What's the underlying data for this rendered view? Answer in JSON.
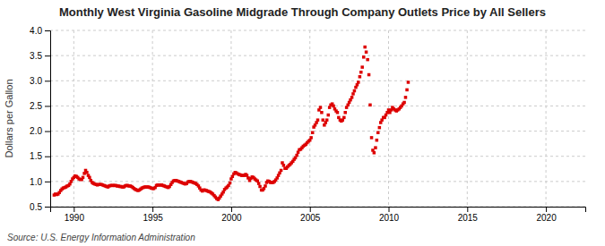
{
  "chart_data": {
    "type": "scatter",
    "title": "Monthly West Virginia Gasoline Midgrade Through Company Outlets Price by All Sellers",
    "y_label": "Dollars per Gallon",
    "source": "Source: U.S. Energy Information Administration",
    "color": "#dd0000",
    "marker": "square",
    "grid": true,
    "xlim": [
      1988.5,
      2022.5
    ],
    "ylim": [
      0.5,
      4.0
    ],
    "xticks": [
      1990,
      1995,
      2000,
      2005,
      2010,
      2015,
      2020
    ],
    "yticks": [
      0.5,
      {
        "value": 1.0,
        "label": "1.0"
      },
      1.5,
      {
        "value": 2.0,
        "label": "2.0"
      },
      2.5,
      {
        "value": 3.0,
        "label": "3.0"
      },
      3.5,
      {
        "value": 4.0,
        "label": "4.0"
      }
    ],
    "x": [
      1988.75,
      1988.83,
      1988.92,
      1989.0,
      1989.08,
      1989.17,
      1989.25,
      1989.33,
      1989.42,
      1989.5,
      1989.58,
      1989.67,
      1989.75,
      1989.83,
      1989.92,
      1990.0,
      1990.08,
      1990.17,
      1990.25,
      1990.33,
      1990.42,
      1990.5,
      1990.58,
      1990.67,
      1990.75,
      1990.83,
      1990.92,
      1991.0,
      1991.08,
      1991.17,
      1991.25,
      1991.33,
      1991.42,
      1991.5,
      1991.58,
      1991.67,
      1991.75,
      1991.83,
      1991.92,
      1992.0,
      1992.08,
      1992.17,
      1992.25,
      1992.33,
      1992.42,
      1992.5,
      1992.58,
      1992.67,
      1992.75,
      1992.83,
      1992.92,
      1993.0,
      1993.08,
      1993.17,
      1993.25,
      1993.33,
      1993.42,
      1993.5,
      1993.58,
      1993.67,
      1993.75,
      1993.83,
      1993.92,
      1994.0,
      1994.08,
      1994.17,
      1994.25,
      1994.33,
      1994.42,
      1994.5,
      1994.58,
      1994.67,
      1994.75,
      1994.83,
      1994.92,
      1995.0,
      1995.08,
      1995.17,
      1995.25,
      1995.33,
      1995.42,
      1995.5,
      1995.58,
      1995.67,
      1995.75,
      1995.83,
      1995.92,
      1996.0,
      1996.08,
      1996.17,
      1996.25,
      1996.33,
      1996.42,
      1996.5,
      1996.58,
      1996.67,
      1996.75,
      1996.83,
      1996.92,
      1997.0,
      1997.08,
      1997.17,
      1997.25,
      1997.33,
      1997.42,
      1997.5,
      1997.58,
      1997.67,
      1997.75,
      1997.83,
      1997.92,
      1998.0,
      1998.08,
      1998.17,
      1998.25,
      1998.33,
      1998.42,
      1998.5,
      1998.58,
      1998.67,
      1998.75,
      1998.83,
      1998.92,
      1999.0,
      1999.08,
      1999.17,
      1999.25,
      1999.33,
      1999.42,
      1999.5,
      1999.58,
      1999.67,
      1999.75,
      1999.83,
      1999.92,
      2000.0,
      2000.08,
      2000.17,
      2000.25,
      2000.33,
      2000.42,
      2000.5,
      2000.58,
      2000.67,
      2000.75,
      2000.83,
      2000.92,
      2001.0,
      2001.08,
      2001.17,
      2001.25,
      2001.33,
      2001.42,
      2001.5,
      2001.58,
      2001.67,
      2001.75,
      2001.83,
      2001.92,
      2002.0,
      2002.08,
      2002.17,
      2002.25,
      2002.33,
      2002.42,
      2002.5,
      2002.58,
      2002.67,
      2002.75,
      2002.83,
      2002.92,
      2003.0,
      2003.08,
      2003.17,
      2003.25,
      2003.33,
      2003.42,
      2003.5,
      2003.58,
      2003.67,
      2003.75,
      2003.83,
      2003.92,
      2004.0,
      2004.08,
      2004.17,
      2004.25,
      2004.33,
      2004.42,
      2004.5,
      2004.58,
      2004.67,
      2004.75,
      2004.83,
      2004.92,
      2005.0,
      2005.08,
      2005.17,
      2005.25,
      2005.33,
      2005.42,
      2005.5,
      2005.58,
      2005.67,
      2005.75,
      2005.83,
      2005.92,
      2006.0,
      2006.08,
      2006.17,
      2006.25,
      2006.33,
      2006.42,
      2006.5,
      2006.58,
      2006.67,
      2006.75,
      2006.83,
      2006.92,
      2007.0,
      2007.08,
      2007.17,
      2007.25,
      2007.33,
      2007.42,
      2007.5,
      2007.58,
      2007.67,
      2007.75,
      2007.83,
      2007.92,
      2008.0,
      2008.08,
      2008.17,
      2008.25,
      2008.33,
      2008.42,
      2008.5,
      2008.58,
      2008.67,
      2008.75,
      2008.83,
      2008.92,
      2009.0,
      2009.08,
      2009.17,
      2009.25,
      2009.33,
      2009.42,
      2009.5,
      2009.58,
      2009.67,
      2009.75,
      2009.83,
      2009.92,
      2010.0,
      2010.08,
      2010.17,
      2010.25,
      2010.33,
      2010.42,
      2010.5,
      2010.58,
      2010.67,
      2010.75,
      2010.83,
      2010.92,
      2011.0,
      2011.08,
      2011.17,
      2011.25
    ],
    "values": [
      0.73,
      0.75,
      0.74,
      0.75,
      0.78,
      0.82,
      0.85,
      0.87,
      0.88,
      0.89,
      0.91,
      0.92,
      0.95,
      1.0,
      1.05,
      1.08,
      1.11,
      1.1,
      1.08,
      1.05,
      1.04,
      1.04,
      1.08,
      1.16,
      1.22,
      1.18,
      1.12,
      1.08,
      1.02,
      0.98,
      0.96,
      0.95,
      0.94,
      0.93,
      0.94,
      0.94,
      0.94,
      0.93,
      0.92,
      0.91,
      0.9,
      0.89,
      0.91,
      0.92,
      0.92,
      0.92,
      0.92,
      0.92,
      0.91,
      0.91,
      0.9,
      0.9,
      0.89,
      0.89,
      0.91,
      0.92,
      0.92,
      0.91,
      0.91,
      0.9,
      0.88,
      0.86,
      0.84,
      0.83,
      0.82,
      0.83,
      0.85,
      0.87,
      0.88,
      0.89,
      0.89,
      0.89,
      0.89,
      0.88,
      0.87,
      0.86,
      0.86,
      0.88,
      0.92,
      0.93,
      0.93,
      0.93,
      0.93,
      0.92,
      0.91,
      0.9,
      0.89,
      0.88,
      0.9,
      0.94,
      0.98,
      1.01,
      1.02,
      1.02,
      1.01,
      1.0,
      0.99,
      0.98,
      0.97,
      0.96,
      0.95,
      0.96,
      0.99,
      1.0,
      1.0,
      0.99,
      0.98,
      0.97,
      0.96,
      0.94,
      0.91,
      0.87,
      0.83,
      0.81,
      0.83,
      0.83,
      0.82,
      0.81,
      0.8,
      0.79,
      0.77,
      0.75,
      0.72,
      0.69,
      0.66,
      0.64,
      0.67,
      0.71,
      0.75,
      0.79,
      0.84,
      0.87,
      0.89,
      0.92,
      0.97,
      1.05,
      1.1,
      1.15,
      1.18,
      1.17,
      1.15,
      1.14,
      1.13,
      1.12,
      1.12,
      1.12,
      1.14,
      1.12,
      1.07,
      1.02,
      1.06,
      1.09,
      1.08,
      1.05,
      1.03,
      1.01,
      0.96,
      0.9,
      0.83,
      0.83,
      0.86,
      0.91,
      0.98,
      1.01,
      1.0,
      0.98,
      0.98,
      0.98,
      1.0,
      1.03,
      1.07,
      1.12,
      1.17,
      1.22,
      1.37,
      1.32,
      1.26,
      1.26,
      1.29,
      1.32,
      1.34,
      1.37,
      1.4,
      1.44,
      1.47,
      1.52,
      1.58,
      1.63,
      1.64,
      1.67,
      1.7,
      1.72,
      1.74,
      1.77,
      1.8,
      1.82,
      1.87,
      1.97,
      2.08,
      2.12,
      2.17,
      2.22,
      2.42,
      2.47,
      2.37,
      2.22,
      2.12,
      2.17,
      2.22,
      2.32,
      2.47,
      2.52,
      2.54,
      2.5,
      2.44,
      2.4,
      2.37,
      2.27,
      2.22,
      2.2,
      2.22,
      2.27,
      2.37,
      2.47,
      2.52,
      2.57,
      2.62,
      2.67,
      2.74,
      2.8,
      2.87,
      2.92,
      2.97,
      3.08,
      3.17,
      3.27,
      3.47,
      3.67,
      3.57,
      3.42,
      3.12,
      2.52,
      1.87,
      1.62,
      1.57,
      1.67,
      1.82,
      1.97,
      2.07,
      2.17,
      2.22,
      2.27,
      2.27,
      2.32,
      2.37,
      2.42,
      2.37,
      2.42,
      2.47,
      2.44,
      2.42,
      2.4,
      2.42,
      2.44,
      2.47,
      2.5,
      2.54,
      2.57,
      2.67,
      2.82,
      2.97
    ]
  }
}
